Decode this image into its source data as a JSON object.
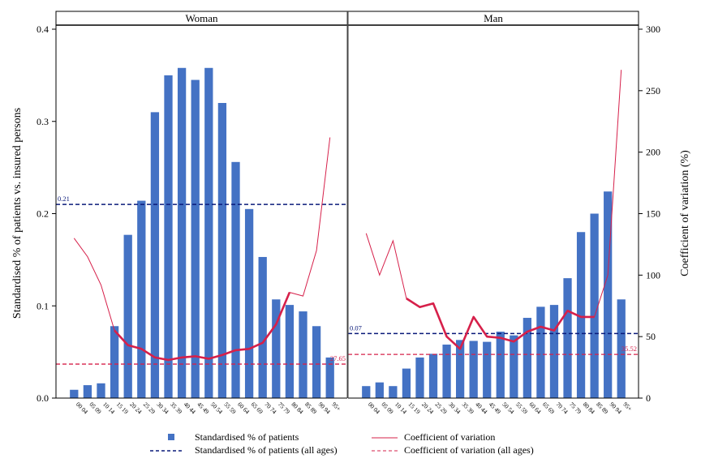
{
  "chart_data": {
    "type": "bar",
    "ylabel_left": "Standardised % of patients vs. insured persons",
    "ylabel_right": "Coefficient of variation (%)",
    "ylim_left": [
      0,
      0.4
    ],
    "ylim_right": [
      0,
      300
    ],
    "yticks_left": [
      "0.0",
      "0.1",
      "0.2",
      "0.3",
      "0.4"
    ],
    "yticks_right": [
      "0",
      "50",
      "100",
      "150",
      "200",
      "250",
      "300"
    ],
    "categories": [
      "00_04",
      "05_09",
      "10_14",
      "15_19",
      "20_24",
      "25_29",
      "30_34",
      "35_39",
      "40_44",
      "45_49",
      "50_54",
      "55_59",
      "60_64",
      "65_69",
      "70_74",
      "75_79",
      "80_84",
      "85_89",
      "90_94",
      "95+"
    ],
    "tick_labels": [
      [
        "00",
        "04"
      ],
      [
        "05",
        "09"
      ],
      [
        "10",
        "14"
      ],
      [
        "15",
        "19"
      ],
      [
        "20",
        "24"
      ],
      [
        "25",
        "29"
      ],
      [
        "30",
        "34"
      ],
      [
        "35",
        "39"
      ],
      [
        "40",
        "44"
      ],
      [
        "45",
        "49"
      ],
      [
        "50",
        "54"
      ],
      [
        "55",
        "59"
      ],
      [
        "60",
        "64"
      ],
      [
        "65",
        "69"
      ],
      [
        "70",
        "74"
      ],
      [
        "75",
        "79"
      ],
      [
        "80",
        "84"
      ],
      [
        "85",
        "89"
      ],
      [
        "90",
        "94"
      ],
      [
        "95+",
        ""
      ]
    ],
    "panels": [
      {
        "title": "Woman",
        "bars": [
          0.009,
          0.014,
          0.016,
          0.078,
          0.177,
          0.214,
          0.31,
          0.35,
          0.358,
          0.345,
          0.358,
          0.32,
          0.256,
          0.205,
          0.153,
          0.107,
          0.101,
          0.094,
          0.078,
          0.044
        ],
        "cv": [
          130,
          115,
          92,
          55,
          43,
          40,
          33,
          31,
          33,
          34,
          32,
          35,
          39,
          40,
          45,
          60,
          86,
          83,
          120,
          212
        ],
        "cv_bold_from": 3,
        "cv_bold_to": 16,
        "ref_pct": 0.21,
        "ref_pct_label": "0.21",
        "ref_cv": 27.65,
        "ref_cv_label": "27.65"
      },
      {
        "title": "Man",
        "bars": [
          0.013,
          0.017,
          0.013,
          0.032,
          0.044,
          0.048,
          0.058,
          0.063,
          0.062,
          0.061,
          0.072,
          0.068,
          0.087,
          0.099,
          0.101,
          0.13,
          0.18,
          0.2,
          0.224,
          0.107
        ],
        "cv": [
          134,
          100,
          128,
          81,
          74,
          77,
          50,
          40,
          66,
          50,
          49,
          46,
          54,
          58,
          55,
          71,
          66,
          66,
          100,
          267
        ],
        "cv_bold_from": 3,
        "cv_bold_to": 17,
        "ref_pct": 0.07,
        "ref_pct_label": "0.07",
        "ref_cv": 35.52,
        "ref_cv_label": "35.52"
      }
    ],
    "legend": {
      "bars": "Standardised % of patients",
      "cv": "Coefficient of variation",
      "ref_pct": "Standardised % of patients (all ages)",
      "ref_cv": "Coefficient of variation (all ages)"
    },
    "colors": {
      "bar": "#4472c4",
      "cv": "#d6204a",
      "ref_pct": "#0a1a7a",
      "ref_cv": "#d6204a",
      "panel_header": "#ffffff"
    }
  }
}
